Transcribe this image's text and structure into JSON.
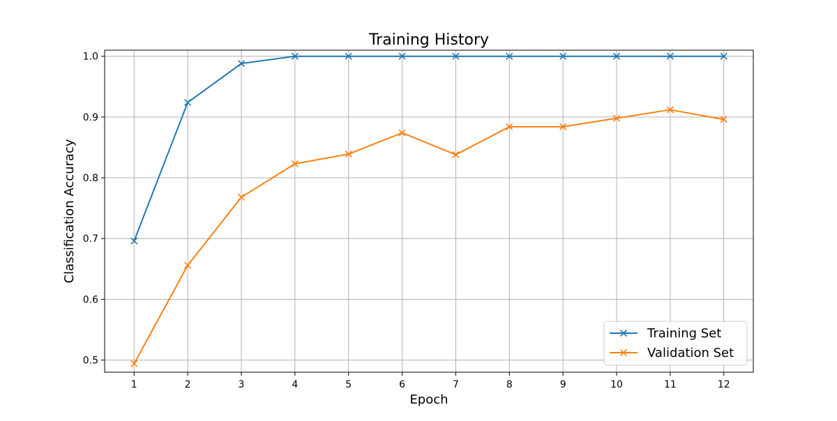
{
  "chart_data": {
    "type": "line",
    "title": "Training History",
    "xlabel": "Epoch",
    "ylabel": "Classification Accuracy",
    "x": [
      1,
      2,
      3,
      4,
      5,
      6,
      7,
      8,
      9,
      10,
      11,
      12
    ],
    "xticks": [
      "1",
      "2",
      "3",
      "4",
      "5",
      "6",
      "7",
      "8",
      "9",
      "10",
      "11",
      "12"
    ],
    "yticks": [
      "0.5",
      "0.6",
      "0.7",
      "0.8",
      "0.9",
      "1.0"
    ],
    "xlim": [
      0.45,
      12.55
    ],
    "ylim": [
      0.48,
      1.01
    ],
    "grid": true,
    "legend_position": "bottom-right",
    "marker": "x",
    "series": [
      {
        "name": "Training Set",
        "color": "#1f77b4",
        "values": [
          0.696,
          0.924,
          0.988,
          1.0,
          1.0,
          1.0,
          1.0,
          1.0,
          1.0,
          1.0,
          1.0,
          1.0
        ]
      },
      {
        "name": "Validation Set",
        "color": "#ff7f0e",
        "values": [
          0.494,
          0.656,
          0.768,
          0.823,
          0.839,
          0.874,
          0.838,
          0.884,
          0.884,
          0.898,
          0.912,
          0.896
        ]
      }
    ]
  }
}
